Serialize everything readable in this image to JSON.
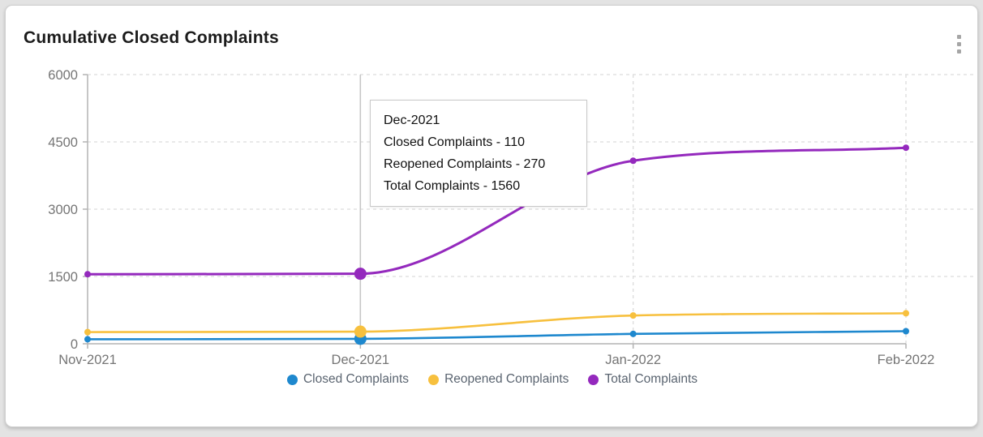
{
  "card": {
    "title": "Cumulative Closed Complaints"
  },
  "chart_data": {
    "type": "line",
    "title": "Cumulative Closed Complaints",
    "categories": [
      "Nov-2021",
      "Dec-2021",
      "Jan-2022",
      "Feb-2022"
    ],
    "series": [
      {
        "name": "Closed Complaints",
        "color": "#1e88ce",
        "values": [
          100,
          110,
          220,
          280
        ]
      },
      {
        "name": "Reopened Complaints",
        "color": "#f7c03e",
        "values": [
          260,
          270,
          630,
          680
        ]
      },
      {
        "name": "Total Complaints",
        "color": "#9429bd",
        "values": [
          1550,
          1560,
          4080,
          4370
        ]
      }
    ],
    "ylim": [
      0,
      6000
    ],
    "yticks": [
      0,
      1500,
      3000,
      4500,
      6000
    ],
    "grid": true,
    "legend_position": "bottom",
    "highlight_category": "Dec-2021",
    "highlight_index": 1
  },
  "tooltip": {
    "title": "Dec-2021",
    "lines": [
      "Closed Complaints - 110",
      "Reopened Complaints - 270",
      "Total Complaints - 1560"
    ]
  },
  "colors": {
    "axis": "#b3b3b3",
    "grid": "#dcdcdc",
    "crosshair": "#c6c6c6",
    "tick_text": "#757575"
  }
}
